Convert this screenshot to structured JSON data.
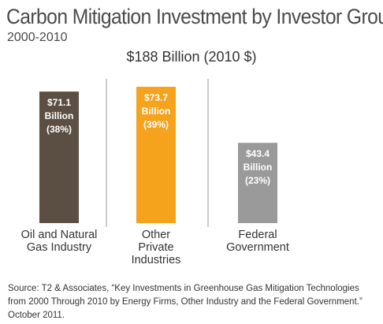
{
  "chart_data": {
    "type": "bar",
    "title": "Carbon Mitigation Investment by Investor Group",
    "subtitle": "2000-2010",
    "total_label": "$188 Billion (2010 $)",
    "categories": [
      [
        "Oil and Natural",
        "Gas Industry"
      ],
      [
        "Other",
        "Private",
        "Industries"
      ],
      [
        "Federal",
        "Government"
      ]
    ],
    "values": [
      71.1,
      73.7,
      43.4
    ],
    "data_labels": [
      [
        "$71.1",
        "Billion",
        "(38%)"
      ],
      [
        "$73.7",
        "Billion",
        "(39%)"
      ],
      [
        "$43.4",
        "Billion",
        "(23%)"
      ]
    ],
    "colors": [
      "#5b4f43",
      "#f5a21c",
      "#9a9a9a"
    ],
    "ylim": [
      0,
      75
    ],
    "grid": false
  },
  "source_lines": [
    "Source: T2 & Associates, “Key Investments in Greenhouse Gas Mitigation Technologies",
    "from 2000 Through 2010 by Energy Firms, Other Industry and the Federal Government.”",
    "October 2011."
  ]
}
